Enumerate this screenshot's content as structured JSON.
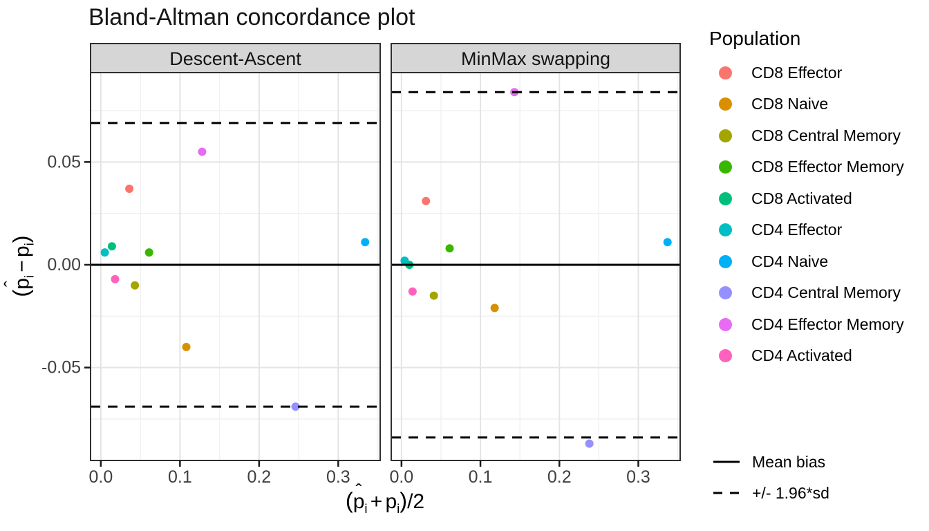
{
  "colors": {
    "strip_fill": "#D6D6D6",
    "panel_border": "#2F2F2F",
    "panel_background": "#FFFFFF",
    "grid_major": "#E4E4E4",
    "grid_minor": "#F1F1F1",
    "tick_label": "#404040",
    "line": "#000000"
  },
  "legend": {
    "title": "Population",
    "line_entries": [
      {
        "label": "Mean bias",
        "style": "solid"
      },
      {
        "label": "+/- 1.96*sd",
        "style": "dashed"
      }
    ]
  },
  "chart_data": {
    "type": "scatter",
    "title": "Bland-Altman concordance plot",
    "xlabel": "(p̂i + pi)/2",
    "ylabel": "(p̂i − pi)",
    "x_title_parts": {
      "open": "(",
      "p": "p",
      "hat": "ˆ",
      "sub": "i",
      "op": "+",
      "p2": "p",
      "sub2": "i",
      "close": ")",
      "divisor": "/2"
    },
    "y_title_parts": {
      "open": "(",
      "p": "p",
      "hat": "ˆ",
      "sub": "i",
      "op": "−",
      "p2": "p",
      "sub2": "i",
      "close": ")"
    },
    "x_domain": [
      -0.013,
      0.353
    ],
    "y_domain": [
      -0.0952,
      0.0935
    ],
    "x_ticks": [
      "0.0",
      "0.1",
      "0.2",
      "0.3"
    ],
    "x_tick_values": [
      0,
      0.1,
      0.2,
      0.3
    ],
    "x_minor_values": [
      0.05,
      0.15,
      0.25,
      0.35
    ],
    "y_ticks": [
      "0.05",
      "0.00",
      "-0.05"
    ],
    "y_tick_values": [
      0.05,
      0,
      -0.05
    ],
    "y_minor_values": [
      0.075,
      0.025,
      -0.025,
      -0.075
    ],
    "grid": true,
    "legend_position": "right",
    "populations": [
      {
        "name": "CD8 Effector",
        "color": "#F8766D"
      },
      {
        "name": "CD8 Naive",
        "color": "#D89000"
      },
      {
        "name": "CD8 Central Memory",
        "color": "#A3A500"
      },
      {
        "name": "CD8 Effector Memory",
        "color": "#39B600"
      },
      {
        "name": "CD8 Activated",
        "color": "#00BF7D"
      },
      {
        "name": "CD4 Effector",
        "color": "#00BFC4"
      },
      {
        "name": "CD4 Naive",
        "color": "#00B0F6"
      },
      {
        "name": "CD4 Central Memory",
        "color": "#9590FF"
      },
      {
        "name": "CD4 Effector Memory",
        "color": "#E76BF3"
      },
      {
        "name": "CD4 Activated",
        "color": "#FF62BC"
      }
    ],
    "facets": [
      {
        "label": "Descent-Ascent",
        "mean_bias": 0.0,
        "upper_loa": 0.069,
        "lower_loa": -0.069,
        "points": [
          {
            "population": "CD8 Effector",
            "x": 0.036,
            "y": 0.037
          },
          {
            "population": "CD8 Naive",
            "x": 0.108,
            "y": -0.04
          },
          {
            "population": "CD8 Central Memory",
            "x": 0.043,
            "y": -0.01
          },
          {
            "population": "CD8 Effector Memory",
            "x": 0.061,
            "y": 0.006
          },
          {
            "population": "CD8 Activated",
            "x": 0.014,
            "y": 0.009
          },
          {
            "population": "CD4 Effector",
            "x": 0.005,
            "y": 0.006
          },
          {
            "population": "CD4 Naive",
            "x": 0.334,
            "y": 0.011
          },
          {
            "population": "CD4 Central Memory",
            "x": 0.246,
            "y": -0.069
          },
          {
            "population": "CD4 Effector Memory",
            "x": 0.128,
            "y": 0.055
          },
          {
            "population": "CD4 Activated",
            "x": 0.018,
            "y": -0.007
          }
        ]
      },
      {
        "label": "MinMax swapping",
        "mean_bias": 0.0,
        "upper_loa": 0.084,
        "lower_loa": -0.084,
        "points": [
          {
            "population": "CD8 Effector",
            "x": 0.031,
            "y": 0.031
          },
          {
            "population": "CD8 Naive",
            "x": 0.118,
            "y": -0.021
          },
          {
            "population": "CD8 Central Memory",
            "x": 0.041,
            "y": -0.015
          },
          {
            "population": "CD8 Effector Memory",
            "x": 0.061,
            "y": 0.008
          },
          {
            "population": "CD8 Activated",
            "x": 0.01,
            "y": 0.0
          },
          {
            "population": "CD4 Effector",
            "x": 0.004,
            "y": 0.002
          },
          {
            "population": "CD4 Naive",
            "x": 0.337,
            "y": 0.011
          },
          {
            "population": "CD4 Central Memory",
            "x": 0.238,
            "y": -0.087
          },
          {
            "population": "CD4 Effector Memory",
            "x": 0.143,
            "y": 0.084
          },
          {
            "population": "CD4 Activated",
            "x": 0.014,
            "y": -0.013
          }
        ]
      }
    ]
  }
}
